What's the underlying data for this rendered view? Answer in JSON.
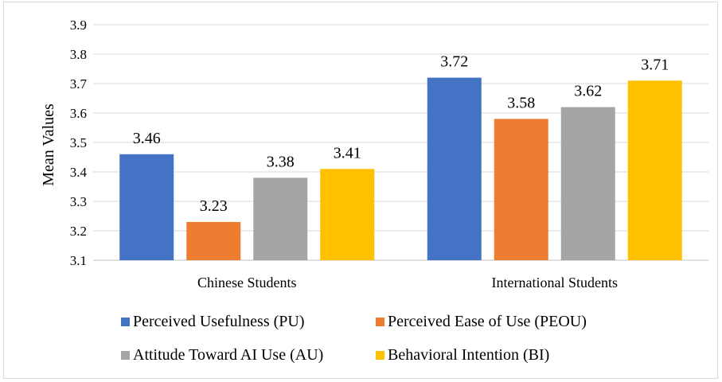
{
  "chart_data": {
    "type": "bar",
    "title": "",
    "xlabel": "",
    "ylabel": "Mean Values",
    "ylim": [
      3.1,
      3.9
    ],
    "yticks": [
      "3.1",
      "3.2",
      "3.3",
      "3.4",
      "3.5",
      "3.6",
      "3.7",
      "3.8",
      "3.9"
    ],
    "grid": true,
    "legend_position": "bottom",
    "categories": [
      "Chinese Students",
      "International Students"
    ],
    "series": [
      {
        "name": "Perceived Usefulness (PU)",
        "color": "#4472c4",
        "values": [
          3.46,
          3.72
        ],
        "labels": [
          "3.46",
          "3.72"
        ]
      },
      {
        "name": "Perceived Ease of Use (PEOU)",
        "color": "#ed7d31",
        "values": [
          3.23,
          3.58
        ],
        "labels": [
          "3.23",
          "3.58"
        ]
      },
      {
        "name": "Attitude Toward AI Use (AU)",
        "color": "#a5a5a5",
        "values": [
          3.38,
          3.62
        ],
        "labels": [
          "3.38",
          "3.62"
        ]
      },
      {
        "name": "Behavioral Intention (BI)",
        "color": "#ffc000",
        "values": [
          3.41,
          3.71
        ],
        "labels": [
          "3.41",
          "3.71"
        ]
      }
    ]
  }
}
